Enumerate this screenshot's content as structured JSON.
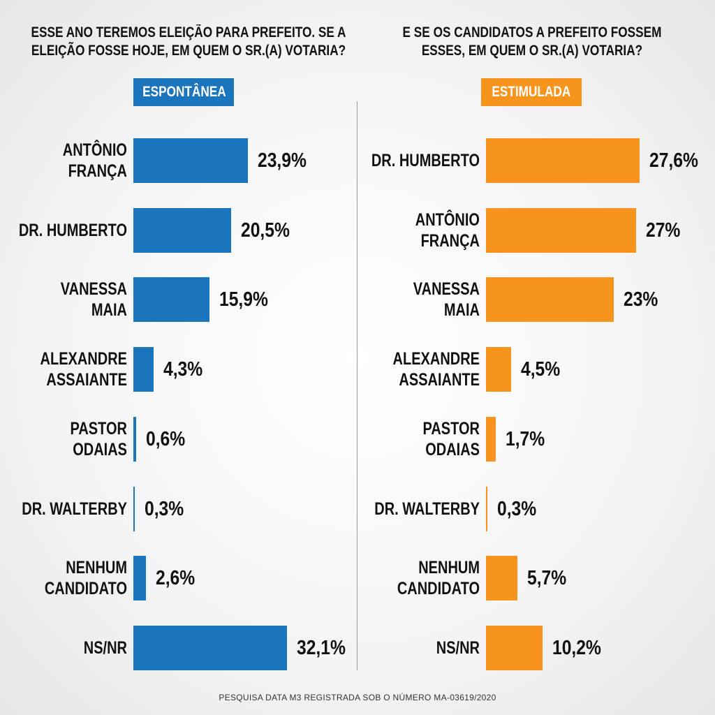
{
  "chart_data": [
    {
      "type": "bar",
      "orientation": "horizontal",
      "title": "ESSE ANO TEREMOS ELEIÇÃO PARA PREFEITO. SE A\nELEIÇÃO FOSSE HOJE, EM QUEM O SR.(A) VOTARIA?",
      "subtitle": "ESPONTÂNEA",
      "categories": [
        "ANTÔNIO\nFRANÇA",
        "DR. HUMBERTO",
        "VANESSA\nMAIA",
        "ALEXANDRE\nASSAIANTE",
        "PASTOR\nODAIAS",
        "DR. WALTERBY",
        "NENHUM\nCANDIDATO",
        "NS/NR"
      ],
      "values": [
        23.9,
        20.5,
        15.9,
        4.3,
        0.6,
        0.3,
        2.6,
        32.1
      ],
      "value_labels": [
        "23,9%",
        "20,5%",
        "15,9%",
        "4,3%",
        "0,6%",
        "0,3%",
        "2,6%",
        "32,1%"
      ],
      "color": "#1b75bc"
    },
    {
      "type": "bar",
      "orientation": "horizontal",
      "title": "E SE OS CANDIDATOS A PREFEITO FOSSEM\nESSES, EM QUEM O SR.(A) VOTARIA?",
      "subtitle": "ESTIMULADA",
      "categories": [
        "DR. HUMBERTO",
        "ANTÔNIO\nFRANÇA",
        "VANESSA\nMAIA",
        "ALEXANDRE\nASSAIANTE",
        "PASTOR\nODAIAS",
        "DR. WALTERBY",
        "NENHUM\nCANDIDATO",
        "NS/NR"
      ],
      "values": [
        27.6,
        27,
        23,
        4.5,
        1.7,
        0.3,
        5.7,
        10.2
      ],
      "value_labels": [
        "27,6%",
        "27%",
        "23%",
        "4,5%",
        "1,7%",
        "0,3%",
        "5,7%",
        "10,2%"
      ],
      "color": "#f7941d"
    }
  ],
  "footer": "PESQUISA DATA M3 REGISTRADA SOB O NÚMERO MA-03619/2020"
}
